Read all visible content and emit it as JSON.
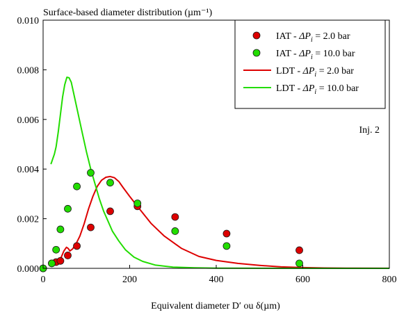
{
  "chart_data": {
    "type": "scatter",
    "title": "",
    "ylabel": "Surface-based diameter distribution (µm⁻¹)",
    "xlabel": "Equivalent diameter D′ ou δ(µm)",
    "annotation": "Inj. 2",
    "xlim": [
      0,
      800
    ],
    "ylim": [
      0,
      0.01
    ],
    "x_ticks": [
      0,
      200,
      400,
      600,
      800
    ],
    "y_ticks": [
      0.0,
      0.002,
      0.004,
      0.006,
      0.008,
      0.01
    ],
    "x_tick_labels": [
      "0",
      "200",
      "400",
      "600",
      "800"
    ],
    "y_tick_labels": [
      "0.000",
      "0.002",
      "0.004",
      "0.006",
      "0.008",
      "0.010"
    ],
    "grid": false,
    "legend_position": "top-right",
    "series": [
      {
        "name": "IAT - ΔP_i = 2.0 bar",
        "legend_parts": [
          "IAT - ",
          "ΔP",
          "i",
          " = 2.0 bar"
        ],
        "kind": "scatter",
        "color": "#dd0000",
        "points": [
          [
            0,
            0.0
          ],
          [
            20,
            0.0002
          ],
          [
            30,
            0.00025
          ],
          [
            40,
            0.0003
          ],
          [
            57,
            0.00052
          ],
          [
            78,
            0.0009
          ],
          [
            110,
            0.00165
          ],
          [
            155,
            0.0023
          ],
          [
            218,
            0.0025
          ],
          [
            305,
            0.00207
          ],
          [
            424,
            0.0014
          ],
          [
            592,
            0.00073
          ]
        ]
      },
      {
        "name": "IAT - ΔP_i = 10.0 bar",
        "legend_parts": [
          "IAT - ",
          "ΔP",
          "i",
          " = 10.0 bar"
        ],
        "kind": "scatter",
        "color": "#22dd00",
        "points": [
          [
            0,
            0.0
          ],
          [
            20,
            0.0002
          ],
          [
            30,
            0.00075
          ],
          [
            40,
            0.00157
          ],
          [
            57,
            0.0024
          ],
          [
            78,
            0.0033
          ],
          [
            110,
            0.00385
          ],
          [
            155,
            0.00345
          ],
          [
            218,
            0.00262
          ],
          [
            305,
            0.0015
          ],
          [
            424,
            0.0009
          ],
          [
            592,
            0.0002
          ]
        ]
      },
      {
        "name": "LDT - ΔP_i = 2.0 bar",
        "legend_parts": [
          "LDT - ",
          "ΔP",
          "i",
          " = 2.0 bar"
        ],
        "kind": "line",
        "color": "#dd0000",
        "points": [
          [
            18,
            0.00015
          ],
          [
            25,
            0.0002
          ],
          [
            35,
            0.0003
          ],
          [
            42,
            0.00045
          ],
          [
            48,
            0.0007
          ],
          [
            54,
            0.00085
          ],
          [
            58,
            0.0008
          ],
          [
            62,
            0.0007
          ],
          [
            68,
            0.00078
          ],
          [
            75,
            0.00095
          ],
          [
            85,
            0.0013
          ],
          [
            95,
            0.0018
          ],
          [
            105,
            0.0024
          ],
          [
            115,
            0.0029
          ],
          [
            125,
            0.0033
          ],
          [
            135,
            0.00355
          ],
          [
            145,
            0.00367
          ],
          [
            155,
            0.0037
          ],
          [
            165,
            0.00365
          ],
          [
            175,
            0.0035
          ],
          [
            185,
            0.00325
          ],
          [
            200,
            0.0029
          ],
          [
            220,
            0.00245
          ],
          [
            250,
            0.0018
          ],
          [
            280,
            0.0013
          ],
          [
            320,
            0.0008
          ],
          [
            360,
            0.00048
          ],
          [
            400,
            0.00032
          ],
          [
            450,
            0.0002
          ],
          [
            500,
            0.00012
          ],
          [
            550,
            6e-05
          ],
          [
            600,
            3e-05
          ],
          [
            650,
            1.5e-05
          ],
          [
            700,
            8e-06
          ],
          [
            800,
            2e-06
          ]
        ]
      },
      {
        "name": "LDT - ΔP_i = 10.0 bar",
        "legend_parts": [
          "LDT - ",
          "ΔP",
          "i",
          " = 10.0 bar"
        ],
        "kind": "line",
        "color": "#22dd00",
        "points": [
          [
            18,
            0.0042
          ],
          [
            20,
            0.0043
          ],
          [
            22,
            0.0044
          ],
          [
            26,
            0.0046
          ],
          [
            30,
            0.0049
          ],
          [
            35,
            0.0055
          ],
          [
            40,
            0.0062
          ],
          [
            45,
            0.0069
          ],
          [
            50,
            0.0074
          ],
          [
            55,
            0.0077
          ],
          [
            60,
            0.00768
          ],
          [
            65,
            0.0075
          ],
          [
            70,
            0.0071
          ],
          [
            80,
            0.0063
          ],
          [
            90,
            0.0055
          ],
          [
            100,
            0.0047
          ],
          [
            110,
            0.004
          ],
          [
            120,
            0.0034
          ],
          [
            130,
            0.0028
          ],
          [
            140,
            0.0023
          ],
          [
            150,
            0.0019
          ],
          [
            160,
            0.0015
          ],
          [
            175,
            0.0011
          ],
          [
            190,
            0.00075
          ],
          [
            210,
            0.00045
          ],
          [
            230,
            0.00028
          ],
          [
            260,
            0.00013
          ],
          [
            300,
            5e-05
          ],
          [
            350,
            2e-05
          ],
          [
            400,
            5e-06
          ],
          [
            800,
            0.0
          ]
        ]
      }
    ]
  }
}
